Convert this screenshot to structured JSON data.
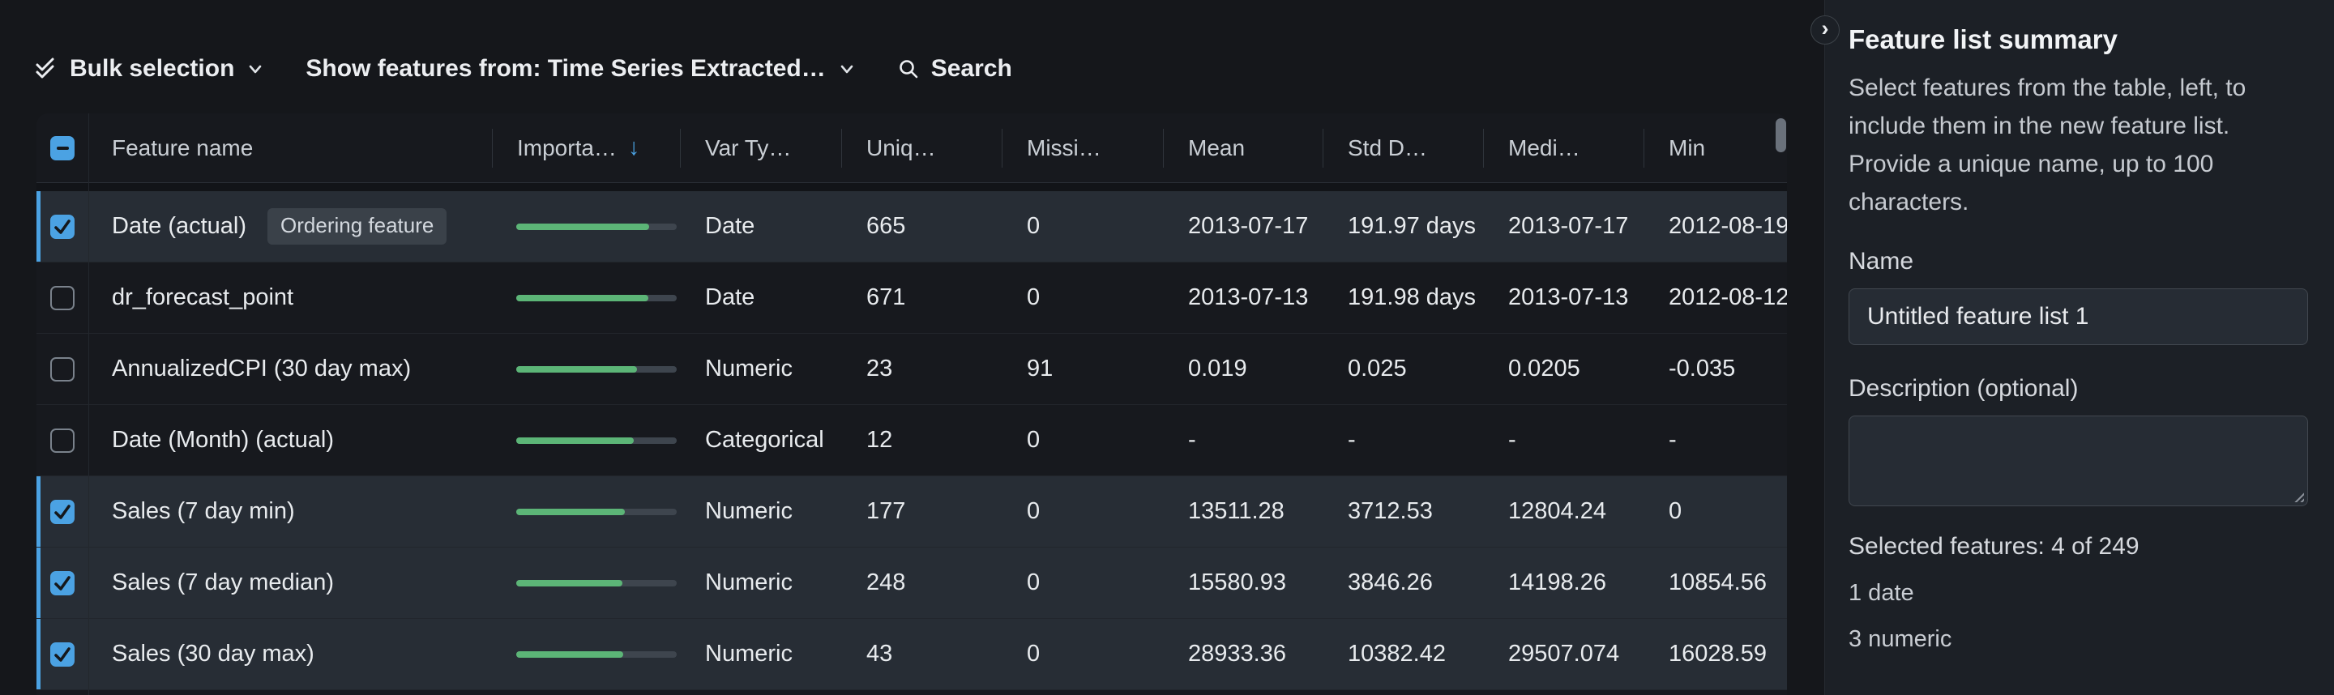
{
  "toolbar": {
    "bulk_selection_label": "Bulk selection",
    "show_features_label": "Show features from: Time Series Extracted…",
    "search_label": "Search"
  },
  "table": {
    "columns": [
      "Feature name",
      "Importa…",
      "Var Ty…",
      "Uniq…",
      "Missi…",
      "Mean",
      "Std D…",
      "Medi…",
      "Min"
    ],
    "sort_column": "Importa…",
    "sort_direction": "descending",
    "header_checkbox_state": "indeterminate",
    "rows": [
      {
        "name": "Date (actual)",
        "badge": "Ordering feature",
        "checked": true,
        "importance": 0.83,
        "var_type": "Date",
        "unique": "665",
        "missing": "0",
        "mean": "2013-07-17",
        "std": "191.97 days",
        "median": "2013-07-17",
        "min": "2012-08-19"
      },
      {
        "name": "dr_forecast_point",
        "badge": "",
        "checked": false,
        "importance": 0.825,
        "var_type": "Date",
        "unique": "671",
        "missing": "0",
        "mean": "2013-07-13",
        "std": "191.98 days",
        "median": "2013-07-13",
        "min": "2012-08-12"
      },
      {
        "name": "AnnualizedCPI (30 day max)",
        "badge": "",
        "checked": false,
        "importance": 0.75,
        "var_type": "Numeric",
        "unique": "23",
        "missing": "91",
        "mean": "0.019",
        "std": "0.025",
        "median": "0.0205",
        "min": "-0.035"
      },
      {
        "name": "Date (Month) (actual)",
        "badge": "",
        "checked": false,
        "importance": 0.73,
        "var_type": "Categorical",
        "unique": "12",
        "missing": "0",
        "mean": "-",
        "std": "-",
        "median": "-",
        "min": "-"
      },
      {
        "name": "Sales (7 day min)",
        "badge": "",
        "checked": true,
        "importance": 0.675,
        "var_type": "Numeric",
        "unique": "177",
        "missing": "0",
        "mean": "13511.28",
        "std": "3712.53",
        "median": "12804.24",
        "min": "0"
      },
      {
        "name": "Sales (7 day median)",
        "badge": "",
        "checked": true,
        "importance": 0.66,
        "var_type": "Numeric",
        "unique": "248",
        "missing": "0",
        "mean": "15580.93",
        "std": "3846.26",
        "median": "14198.26",
        "min": "10854.56"
      },
      {
        "name": "Sales (30 day max)",
        "badge": "",
        "checked": true,
        "importance": 0.665,
        "var_type": "Numeric",
        "unique": "43",
        "missing": "0",
        "mean": "28933.36",
        "std": "10382.42",
        "median": "29507.074",
        "min": "16028.59"
      }
    ]
  },
  "panel": {
    "collapse_icon": "›",
    "title": "Feature list summary",
    "description": "Select features from the table, left, to include them in the new feature list. Provide a unique name, up to 100 characters.",
    "name_label": "Name",
    "name_value": "Untitled feature list 1",
    "description_label": "Description (optional)",
    "description_value": "",
    "selected_summary": "Selected features: 4 of 249",
    "breakdown": [
      "1 date",
      "3 numeric"
    ]
  },
  "colors": {
    "page_bg": "#15171B",
    "row_bg": "#17191E",
    "selected_row_bg": "#272D35",
    "panel_bg": "#1C2026",
    "accent_blue": "#4BA2E3",
    "importance_green": "#5CB577",
    "bar_track": "#3E454E",
    "badge_bg": "#3A4149"
  }
}
